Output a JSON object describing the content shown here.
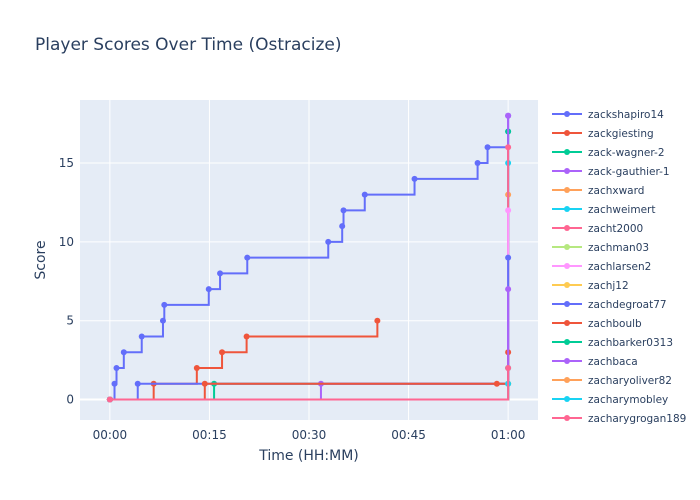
{
  "chart_data": {
    "type": "line",
    "line_shape": "step",
    "title": "Player Scores Over Time (Ostracize)",
    "xlabel": "Time (HH:MM)",
    "ylabel": "Score",
    "x_unit": "minutes",
    "xlim": [
      -4.5,
      64.5
    ],
    "ylim": [
      -1.3,
      19.0
    ],
    "x_ticks": [
      {
        "value": 0,
        "label": "00:00"
      },
      {
        "value": 15,
        "label": "00:15"
      },
      {
        "value": 30,
        "label": "00:30"
      },
      {
        "value": 45,
        "label": "00:45"
      },
      {
        "value": 60,
        "label": "01:00"
      }
    ],
    "y_ticks": [
      {
        "value": 0,
        "label": "0"
      },
      {
        "value": 5,
        "label": "5"
      },
      {
        "value": 10,
        "label": "10"
      },
      {
        "value": 15,
        "label": "15"
      }
    ],
    "grid": true,
    "background": "#e5ecf6",
    "legend_position": "right",
    "series": [
      {
        "name": "zackshapiro14",
        "color": "#636efa",
        "x": [
          0,
          0.7,
          1,
          2.1,
          4.8,
          8.0,
          8.2,
          14.9,
          16.6,
          20.7,
          32.9,
          35.0,
          35.2,
          38.4,
          45.9,
          55.4,
          56.9,
          60.0,
          60.0
        ],
        "y": [
          0,
          1,
          2,
          3,
          4,
          5,
          6,
          7,
          8,
          9,
          10,
          11,
          12,
          13,
          14,
          15,
          16,
          17,
          18
        ]
      },
      {
        "name": "zackgiesting",
        "color": "#ef553b",
        "x": [
          0,
          6.6,
          13.1,
          16.9,
          20.6,
          40.3
        ],
        "y": [
          0,
          1,
          2,
          3,
          4,
          5
        ]
      },
      {
        "name": "zack-wagner-2",
        "color": "#00cc96",
        "x": [
          0,
          15.7,
          60.0
        ],
        "y": [
          0,
          1,
          17
        ]
      },
      {
        "name": "zack-gauthier-1",
        "color": "#ab63fa",
        "x": [
          0,
          31.8,
          60.0
        ],
        "y": [
          0,
          1,
          18
        ]
      },
      {
        "name": "zachxward",
        "color": "#ffa15a",
        "x": [
          0,
          60.0
        ],
        "y": [
          0,
          13
        ]
      },
      {
        "name": "zachweimert",
        "color": "#19d3f3",
        "x": [
          0,
          60.0
        ],
        "y": [
          0,
          15
        ]
      },
      {
        "name": "zacht2000",
        "color": "#ff6692",
        "x": [
          0,
          60.0
        ],
        "y": [
          0,
          16
        ]
      },
      {
        "name": "zachman03",
        "color": "#b6e880",
        "x": [
          0,
          60.0
        ],
        "y": [
          0,
          1
        ]
      },
      {
        "name": "zachlarsen2",
        "color": "#ff97ff",
        "x": [
          0,
          60.0
        ],
        "y": [
          0,
          12
        ]
      },
      {
        "name": "zachj12",
        "color": "#fecb52",
        "x": [
          0,
          60.0
        ],
        "y": [
          0,
          1
        ]
      },
      {
        "name": "zachdegroat77",
        "color": "#636efa",
        "x": [
          0,
          4.2,
          60.0
        ],
        "y": [
          0,
          1,
          9
        ]
      },
      {
        "name": "zachboulb",
        "color": "#ef553b",
        "x": [
          0,
          14.3,
          58.3,
          60.0
        ],
        "y": [
          0,
          1,
          1,
          3
        ]
      },
      {
        "name": "zachbarker0313",
        "color": "#00cc96",
        "x": [
          0,
          60.0
        ],
        "y": [
          0,
          2
        ]
      },
      {
        "name": "zachbaca",
        "color": "#ab63fa",
        "x": [
          0,
          60.0
        ],
        "y": [
          0,
          7
        ]
      },
      {
        "name": "zacharyoliver82",
        "color": "#ffa15a",
        "x": [
          0,
          60.0
        ],
        "y": [
          0,
          1
        ]
      },
      {
        "name": "zacharymobley",
        "color": "#19d3f3",
        "x": [
          0,
          60.0
        ],
        "y": [
          0,
          1
        ]
      },
      {
        "name": "zacharygrogan189",
        "color": "#ff6692",
        "x": [
          0,
          60.0
        ],
        "y": [
          0,
          2
        ]
      }
    ],
    "legend_entries": [
      "zackshapiro14",
      "zackgiesting",
      "zack-wagner-2",
      "zack-gauthier-1",
      "zachxward",
      "zachweimert",
      "zacht2000",
      "zachman03",
      "zachlarsen2",
      "zachj12",
      "zachdegroat77",
      "zachboulb",
      "zachbarker0313",
      "zachbaca",
      "zacharyoliver82",
      "zacharymobley",
      "zacharygrogan189"
    ]
  }
}
